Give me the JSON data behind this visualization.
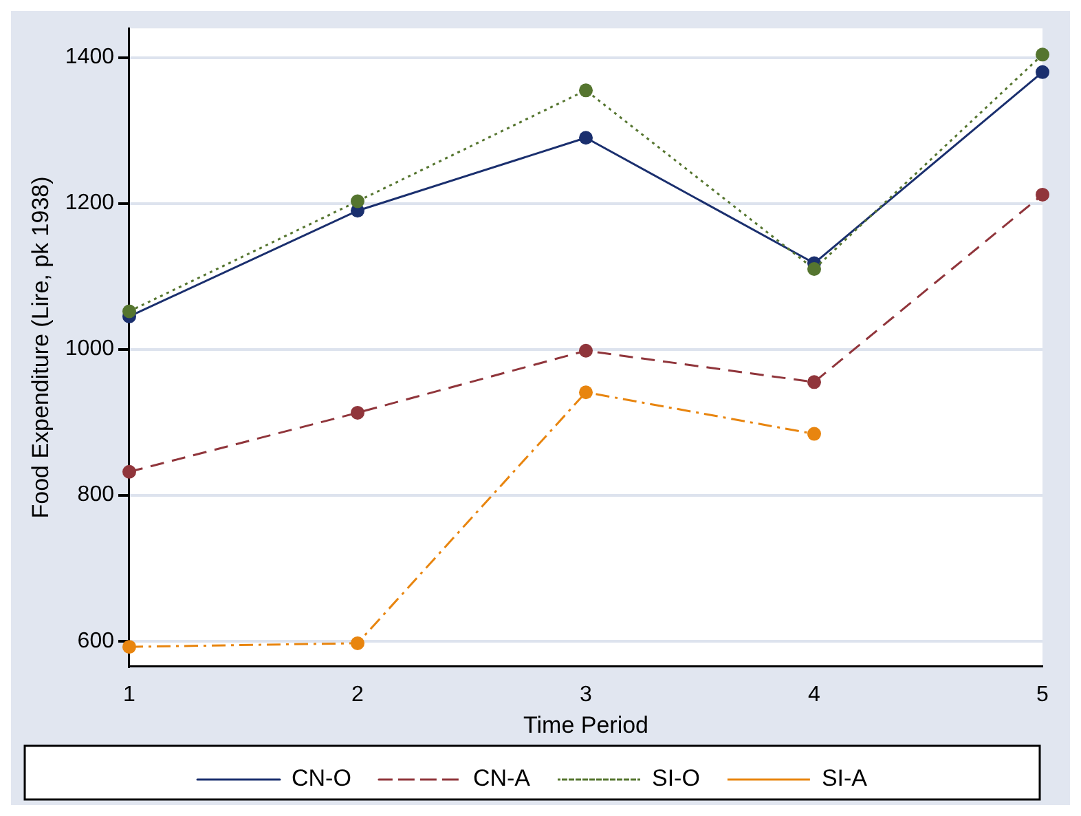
{
  "chart_data": {
    "type": "line",
    "xlabel": "Time Period",
    "ylabel": "Food Expenditure (Lire, pk 1938)",
    "x": [
      1,
      2,
      3,
      4,
      5
    ],
    "xlim": [
      1,
      5
    ],
    "xticks": [
      1,
      2,
      3,
      4,
      5
    ],
    "ylim": [
      565,
      1440
    ],
    "yticks": [
      600,
      800,
      1000,
      1200,
      1400
    ],
    "grid": "y",
    "legend": "bottom",
    "marker": "circle",
    "series": [
      {
        "name": "CN-O",
        "color": "#1a2f6e",
        "line_style": "solid",
        "values": [
          1045,
          1190,
          1290,
          1118,
          1380
        ]
      },
      {
        "name": "CN-A",
        "color": "#90353b",
        "line_style": "dashed",
        "values": [
          832,
          913,
          998,
          955,
          1212
        ]
      },
      {
        "name": "SI-O",
        "color": "#55752f",
        "line_style": "dotted",
        "values": [
          1052,
          1203,
          1355,
          1110,
          1404
        ]
      },
      {
        "name": "SI-A",
        "color": "#e8850f",
        "line_style": "dashdot",
        "values": [
          592,
          597,
          941,
          884,
          null
        ]
      }
    ]
  }
}
